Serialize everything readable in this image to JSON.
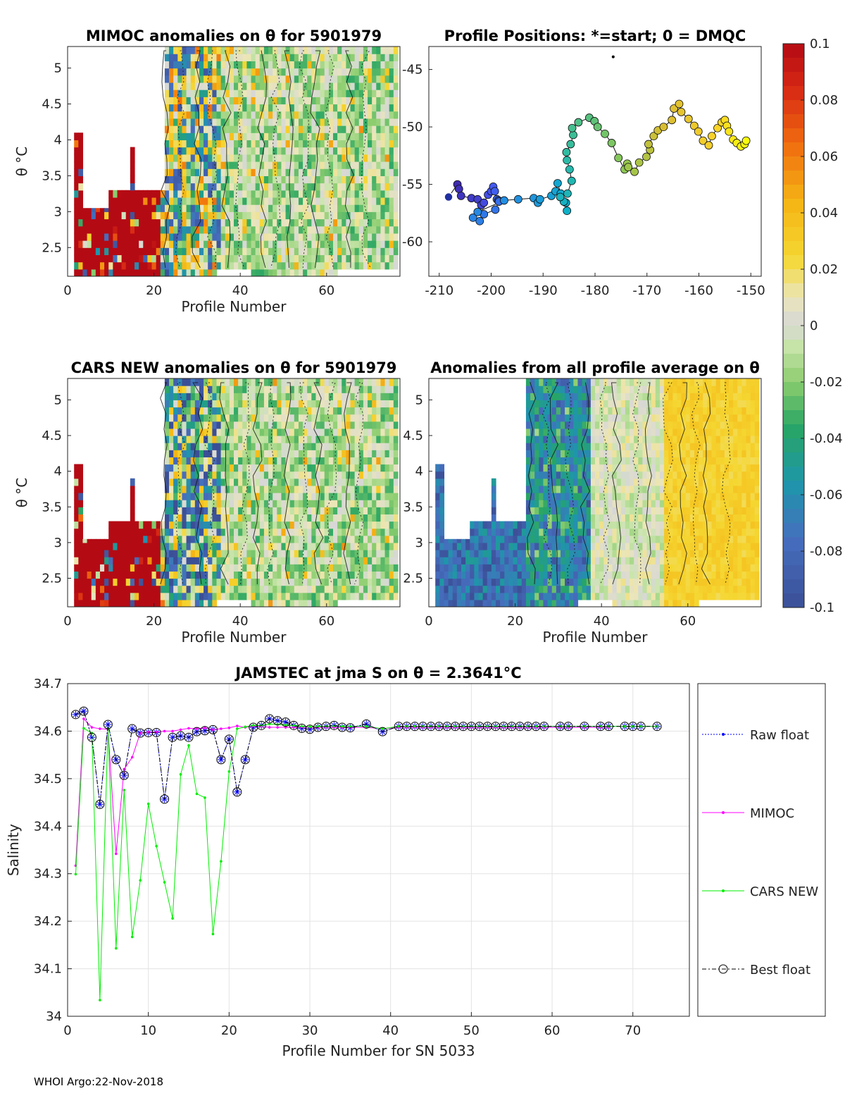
{
  "footer": "WHOI Argo:22-Nov-2018",
  "colorbar": {
    "min": -0.1,
    "max": 0.1,
    "tick_values": [
      0.1,
      0.08,
      0.06,
      0.04,
      0.02,
      0,
      -0.02,
      -0.04,
      -0.06,
      -0.08,
      -0.1
    ],
    "tick_labels": [
      "0.1",
      "0.08",
      "0.06",
      "0.04",
      "0.02",
      "0",
      "-0.02",
      "-0.04",
      "-0.06",
      "-0.08",
      "-0.1"
    ]
  },
  "chart_data": [
    {
      "id": "mimoc",
      "type": "heatmap",
      "title": "MIMOC anomalies on θ  for 5901979",
      "xlabel": "Profile Number",
      "ylabel": "θ °C",
      "xlim": [
        0,
        77
      ],
      "ylim": [
        2.1,
        5.3
      ],
      "xticks": [
        0,
        20,
        40,
        60
      ],
      "yticks": [
        2.5,
        3,
        3.5,
        4,
        4.5,
        5
      ],
      "ytick_labels": [
        "2.5",
        "3",
        "3.5",
        "4",
        "4.5",
        "5"
      ]
    },
    {
      "id": "positions",
      "type": "scatter",
      "title": "Profile Positions: *=start; 0 = DMQC",
      "xlim": [
        -212,
        -148
      ],
      "ylim": [
        -63,
        -43
      ],
      "xticks": [
        -210,
        -200,
        -190,
        -180,
        -170,
        -160,
        -150
      ],
      "yticks": [
        -45,
        -50,
        -55,
        -60
      ],
      "lon": [
        -208.2,
        -206.5,
        -206.2,
        -205.8,
        -203.8,
        -202.6,
        -201.9,
        -201.4,
        -200.6,
        -200.0,
        -199.6,
        -199.3,
        -198.9,
        -198.6,
        -198.5,
        -199.2,
        -201.4,
        -202.2,
        -203.5,
        -202.6,
        -197.5,
        -194.8,
        -191.8,
        -191.0,
        -190.6,
        -188.4,
        -187.6,
        -187.2,
        -186.6,
        -185.6,
        -185.4,
        -186.0,
        -186.7,
        -185.3,
        -184.5,
        -184.9,
        -185.4,
        -185.5,
        -184.7,
        -184.2,
        -184.4,
        -183.2,
        -181.1,
        -180.1,
        -179.5,
        -178.1,
        -176.8,
        -175.5,
        -174.3,
        -173.8,
        -173.6,
        -172.4,
        -171.5,
        -170.1,
        -169.4,
        -169.7,
        -168.7,
        -167.9,
        -166.8,
        -165.2,
        -164.8,
        -163.8,
        -163.4,
        -162.0,
        -160.9,
        -160.1,
        -159.2,
        -158.1,
        -157.5,
        -156.4,
        -155.6,
        -155.0,
        -154.6,
        -154.2,
        -153.4,
        -152.7,
        -151.9,
        -151.2,
        -150.9
      ],
      "lat": [
        -56.1,
        -55.0,
        -55.4,
        -56.0,
        -56.2,
        -56.3,
        -56.8,
        -56.6,
        -55.9,
        -55.6,
        -55.2,
        -55.6,
        -56.3,
        -56.4,
        -56.5,
        -57.2,
        -57.6,
        -58.2,
        -57.9,
        -57.4,
        -56.4,
        -56.3,
        -56.2,
        -56.6,
        -56.3,
        -56.0,
        -55.6,
        -54.9,
        -55.8,
        -56.6,
        -57.3,
        -56.5,
        -56.1,
        -55.8,
        -54.7,
        -53.7,
        -52.9,
        -52.2,
        -51.5,
        -50.7,
        -50.1,
        -49.6,
        -49.2,
        -49.5,
        -50.0,
        -50.6,
        -51.4,
        -52.7,
        -53.7,
        -53.2,
        -53.5,
        -53.9,
        -53.1,
        -52.6,
        -52.0,
        -51.5,
        -50.8,
        -50.3,
        -50.0,
        -49.4,
        -48.4,
        -48.0,
        -48.7,
        -49.3,
        -49.9,
        -50.4,
        -51.2,
        -51.6,
        -50.8,
        -50.1,
        -49.6,
        -49.4,
        -49.9,
        -50.4,
        -51.1,
        -51.4,
        -51.7,
        -51.5,
        -51.2
      ],
      "start_marker": "*"
    },
    {
      "id": "cars",
      "type": "heatmap",
      "title": "CARS NEW anomalies on θ for 5901979",
      "xlabel": "Profile Number",
      "ylabel": "θ °C",
      "xlim": [
        0,
        77
      ],
      "ylim": [
        2.1,
        5.3
      ],
      "xticks": [
        0,
        20,
        40,
        60
      ],
      "yticks": [
        2.5,
        3,
        3.5,
        4,
        4.5,
        5
      ],
      "ytick_labels": [
        "2.5",
        "3",
        "3.5",
        "4",
        "4.5",
        "5"
      ]
    },
    {
      "id": "avg",
      "type": "heatmap",
      "title": "Anomalies from all profile average on θ",
      "xlabel": "Profile Number",
      "ylabel": "θ °C",
      "xlim": [
        0,
        77
      ],
      "ylim": [
        2.1,
        5.3
      ],
      "xticks": [
        0,
        20,
        40,
        60
      ],
      "yticks": [
        2.5,
        3,
        3.5,
        4,
        4.5,
        5
      ],
      "ytick_labels": [
        "2.5",
        "3",
        "3.5",
        "4",
        "4.5",
        "5"
      ]
    },
    {
      "id": "salinity",
      "type": "line",
      "title": "JAMSTEC at jma S on θ = 2.3641°C",
      "xlabel": "Profile Number for SN 5033",
      "ylabel": "Salinity",
      "xlim": [
        0,
        77
      ],
      "ylim": [
        34,
        34.7
      ],
      "xticks": [
        0,
        10,
        20,
        30,
        40,
        50,
        60,
        70
      ],
      "yticks": [
        34,
        34.1,
        34.2,
        34.3,
        34.4,
        34.5,
        34.6,
        34.7
      ],
      "ytick_labels": [
        "34",
        "34.1",
        "34.2",
        "34.3",
        "34.4",
        "34.5",
        "34.6",
        "34.7"
      ],
      "legend": [
        "Raw float",
        "MIMOC",
        "CARS NEW",
        "Best float"
      ],
      "legend_position": "outside-right",
      "series": [
        {
          "name": "Raw float",
          "color": "#0000ff",
          "x": [
            1,
            2,
            3,
            4,
            5,
            6,
            7,
            8,
            9,
            10,
            11,
            12,
            13,
            14,
            15,
            16,
            17,
            18,
            19,
            20,
            21,
            22,
            23,
            24,
            25,
            26,
            27,
            28,
            29,
            30,
            31,
            32,
            33,
            34,
            35,
            37,
            39,
            41,
            42,
            43,
            44,
            45,
            46,
            47,
            48,
            49,
            50,
            51,
            52,
            53,
            54,
            55,
            56,
            57,
            58,
            59,
            61,
            62,
            64,
            66,
            67,
            69,
            70,
            71,
            73
          ],
          "y": [
            34.635,
            34.642,
            34.587,
            34.446,
            34.614,
            34.54,
            34.507,
            34.605,
            34.596,
            34.597,
            34.597,
            34.457,
            34.587,
            34.59,
            34.587,
            34.599,
            34.601,
            34.603,
            34.54,
            34.583,
            34.472,
            34.54,
            34.608,
            34.612,
            34.626,
            34.622,
            34.619,
            34.612,
            34.606,
            34.604,
            34.608,
            34.61,
            34.612,
            34.608,
            34.607,
            34.615,
            34.599,
            34.61,
            34.61,
            34.61,
            34.61,
            34.61,
            34.61,
            34.61,
            34.61,
            34.61,
            34.61,
            34.61,
            34.61,
            34.61,
            34.61,
            34.61,
            34.61,
            34.61,
            34.61,
            34.61,
            34.61,
            34.61,
            34.61,
            34.61,
            34.61,
            34.61,
            34.61,
            34.61,
            34.61
          ]
        },
        {
          "name": "MIMOC",
          "color": "#ff00ff",
          "x": [
            1,
            2,
            3,
            4,
            5,
            6,
            7,
            8,
            9,
            10,
            11,
            12,
            13,
            14,
            15,
            16,
            17,
            18,
            19,
            20,
            21,
            22,
            23,
            24,
            25,
            26,
            27,
            28,
            29,
            30,
            31,
            32,
            33,
            34,
            35,
            37,
            39,
            41,
            42,
            43,
            44,
            45,
            46,
            47,
            48,
            49,
            50,
            51,
            52,
            53,
            54,
            55,
            56,
            57,
            58,
            59,
            61,
            62,
            64,
            66,
            67
          ],
          "y": [
            34.317,
            34.626,
            34.608,
            34.605,
            34.604,
            34.342,
            34.52,
            34.545,
            34.596,
            34.598,
            34.598,
            34.6,
            34.6,
            34.603,
            34.606,
            34.605,
            34.607,
            34.603,
            34.605,
            34.607,
            34.611,
            34.608,
            34.61,
            34.61,
            34.608,
            34.608,
            34.608,
            34.608,
            34.608,
            34.608,
            34.608,
            34.608,
            34.608,
            34.608,
            34.608,
            34.608,
            34.605,
            34.608,
            34.608,
            34.608,
            34.608,
            34.608,
            34.608,
            34.608,
            34.608,
            34.608,
            34.608,
            34.608,
            34.608,
            34.608,
            34.608,
            34.608,
            34.608,
            34.608,
            34.608,
            34.608,
            34.608,
            34.608,
            34.608,
            34.608,
            34.608
          ]
        },
        {
          "name": "CARS NEW",
          "color": "#00ee00",
          "x": [
            1,
            2,
            3,
            4,
            5,
            6,
            7,
            8,
            9,
            10,
            11,
            12,
            13,
            14,
            15,
            16,
            17,
            18,
            19,
            20,
            21,
            22,
            23,
            24,
            25,
            26,
            27,
            28,
            29,
            30,
            31,
            32,
            33,
            34,
            35,
            37,
            39,
            41,
            42,
            43,
            44,
            45,
            46,
            47,
            48,
            49,
            50,
            51,
            52,
            53,
            54,
            55,
            56,
            57,
            58,
            59,
            61,
            62,
            64,
            66,
            67,
            69,
            70,
            71,
            73
          ],
          "y": [
            34.299,
            34.606,
            34.596,
            34.034,
            34.605,
            34.143,
            34.476,
            34.167,
            34.286,
            34.447,
            34.358,
            34.282,
            34.206,
            34.509,
            34.57,
            34.468,
            34.46,
            34.173,
            34.326,
            34.515,
            34.605,
            34.609,
            34.612,
            34.612,
            34.615,
            34.614,
            34.613,
            34.612,
            34.61,
            34.609,
            34.61,
            34.61,
            34.611,
            34.61,
            34.61,
            34.61,
            34.605,
            34.61,
            34.61,
            34.61,
            34.61,
            34.61,
            34.61,
            34.61,
            34.61,
            34.61,
            34.61,
            34.61,
            34.61,
            34.61,
            34.61,
            34.61,
            34.61,
            34.61,
            34.61,
            34.61,
            34.61,
            34.61,
            34.61,
            34.61,
            34.61,
            34.61,
            34.61,
            34.61,
            34.61
          ]
        },
        {
          "name": "Best float",
          "color": "#000000",
          "x": [
            1,
            2,
            3,
            4,
            5,
            6,
            7,
            8,
            9,
            10,
            11,
            12,
            13,
            14,
            15,
            16,
            17,
            18,
            19,
            20,
            21,
            22,
            23,
            24,
            25,
            26,
            27,
            28,
            29,
            30,
            31,
            32,
            33,
            34,
            35,
            37,
            39,
            41,
            42,
            43,
            44,
            45,
            46,
            47,
            48,
            49,
            50,
            51,
            52,
            53,
            54,
            55,
            56,
            57,
            58,
            59,
            61,
            62,
            64,
            66,
            67,
            69,
            70,
            71,
            73
          ],
          "y": [
            34.635,
            34.642,
            34.587,
            34.446,
            34.614,
            34.54,
            34.507,
            34.605,
            34.596,
            34.597,
            34.597,
            34.457,
            34.587,
            34.59,
            34.587,
            34.599,
            34.601,
            34.603,
            34.54,
            34.583,
            34.472,
            34.54,
            34.608,
            34.612,
            34.626,
            34.622,
            34.619,
            34.612,
            34.606,
            34.604,
            34.608,
            34.61,
            34.612,
            34.608,
            34.607,
            34.615,
            34.599,
            34.61,
            34.61,
            34.61,
            34.61,
            34.61,
            34.61,
            34.61,
            34.61,
            34.61,
            34.61,
            34.61,
            34.61,
            34.61,
            34.61,
            34.61,
            34.61,
            34.61,
            34.61,
            34.61,
            34.61,
            34.61,
            34.61,
            34.61,
            34.61,
            34.61,
            34.61,
            34.61,
            34.61
          ]
        }
      ]
    }
  ]
}
